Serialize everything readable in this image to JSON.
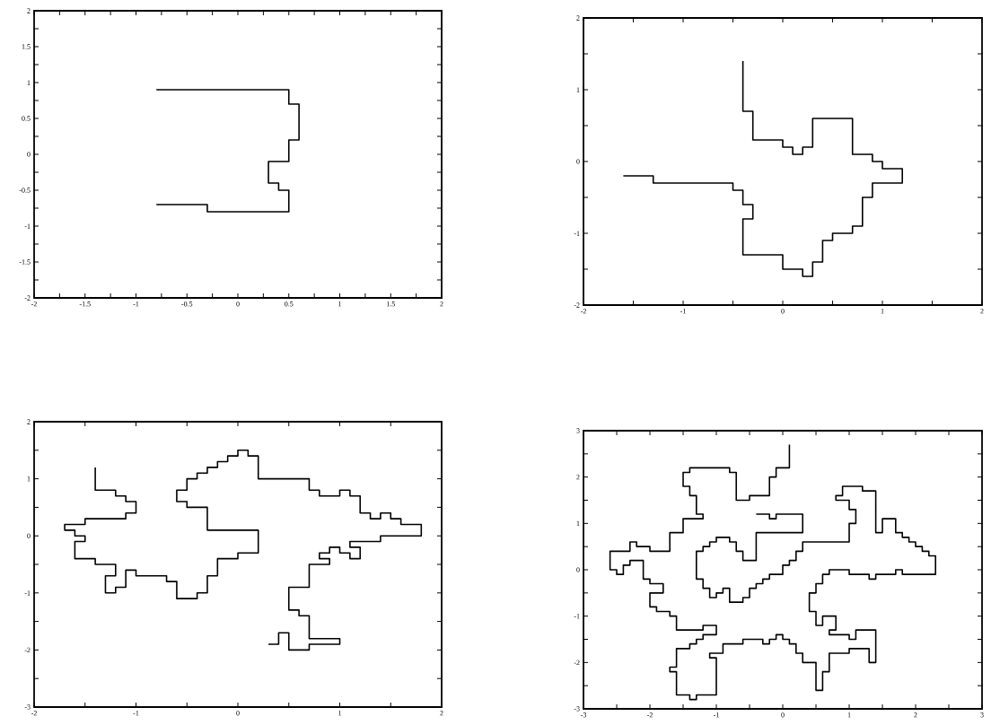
{
  "chart_data": [
    {
      "type": "line",
      "xlim": [
        -2,
        2
      ],
      "ylim": [
        -2,
        2
      ],
      "xticks": [
        -2,
        {
          "value": -1.75,
          "label": null
        },
        -1.5,
        {
          "value": -1.25,
          "label": null
        },
        -1,
        {
          "value": -0.75,
          "label": null
        },
        -0.5,
        {
          "value": -0.25,
          "label": null
        },
        0,
        {
          "value": 0.25,
          "label": null
        },
        0.5,
        {
          "value": 0.75,
          "label": null
        },
        1,
        {
          "value": 1.25,
          "label": null
        },
        1.5,
        {
          "value": 1.75,
          "label": null
        },
        2
      ],
      "yticks": [
        -2,
        {
          "value": -1.75,
          "label": null
        },
        -1.5,
        {
          "value": -1.25,
          "label": null
        },
        -1,
        {
          "value": -0.75,
          "label": null
        },
        -0.5,
        {
          "value": -0.25,
          "label": null
        },
        0,
        {
          "value": 0.25,
          "label": null
        },
        0.5,
        {
          "value": 0.75,
          "label": null
        },
        1,
        {
          "value": 1.25,
          "label": null
        },
        1.5,
        {
          "value": 1.75,
          "label": null
        },
        2
      ],
      "series": [
        {
          "color": "#000000",
          "x": [
            -0.8,
            0.5,
            0.5,
            0.6,
            0.6,
            0.5,
            0.5,
            0.3,
            0.3,
            0.4,
            0.4,
            0.5,
            0.5,
            -0.3,
            -0.3,
            -0.8
          ],
          "values": [
            0.9,
            0.9,
            0.7,
            0.7,
            0.2,
            0.2,
            -0.1,
            -0.1,
            -0.4,
            -0.4,
            -0.5,
            -0.5,
            -0.8,
            -0.8,
            -0.7,
            -0.7
          ]
        }
      ]
    },
    {
      "type": "line",
      "xlim": [
        -2,
        2
      ],
      "ylim": [
        -2,
        2
      ],
      "xticks": [
        -2,
        {
          "value": -1.5,
          "label": null
        },
        -1,
        {
          "value": -0.5,
          "label": null
        },
        0,
        {
          "value": 0.5,
          "label": null
        },
        1,
        {
          "value": 1.5,
          "label": null
        },
        2
      ],
      "yticks": [
        -2,
        {
          "value": -1.5,
          "label": null
        },
        -1,
        {
          "value": -0.5,
          "label": null
        },
        0,
        {
          "value": 0.5,
          "label": null
        },
        1,
        {
          "value": 1.5,
          "label": null
        },
        2
      ],
      "series": [
        {
          "color": "#000000",
          "x": [
            -0.4,
            -0.4,
            -0.3,
            -0.3,
            0,
            0,
            0.1,
            0.1,
            0.2,
            0.2,
            0.3,
            0.3,
            0.7,
            0.7,
            0.9,
            0.9,
            1.0,
            1.0,
            1.2,
            1.2,
            0.9,
            0.9,
            0.8,
            0.8,
            0.7,
            0.7,
            0.5,
            0.5,
            0.4,
            0.4,
            0.3,
            0.3,
            0.2,
            0.2,
            0,
            0,
            -0.4,
            -0.4,
            -0.3,
            -0.3,
            -0.4,
            -0.4,
            -0.5,
            -0.5,
            -1.3,
            -1.3,
            -1.6
          ],
          "values": [
            1.4,
            0.7,
            0.7,
            0.3,
            0.3,
            0.2,
            0.2,
            0.1,
            0.1,
            0.2,
            0.2,
            0.6,
            0.6,
            0.1,
            0.1,
            0,
            0,
            -0.1,
            -0.1,
            -0.3,
            -0.3,
            -0.5,
            -0.5,
            -0.9,
            -0.9,
            -1.0,
            -1.0,
            -1.1,
            -1.1,
            -1.4,
            -1.4,
            -1.6,
            -1.6,
            -1.5,
            -1.5,
            -1.3,
            -1.3,
            -0.8,
            -0.8,
            -0.6,
            -0.6,
            -0.4,
            -0.4,
            -0.3,
            -0.3,
            -0.2,
            -0.2
          ]
        }
      ]
    },
    {
      "type": "line",
      "xlim": [
        -2,
        2
      ],
      "ylim": [
        -3,
        2
      ],
      "xticks": [
        -2,
        {
          "value": -1.5,
          "label": null
        },
        -1,
        {
          "value": -0.5,
          "label": null
        },
        0,
        {
          "value": 0.5,
          "label": null
        },
        1,
        {
          "value": 1.5,
          "label": null
        },
        2
      ],
      "yticks": [
        -3,
        {
          "value": -2.5,
          "label": null
        },
        -2,
        {
          "value": -1.5,
          "label": null
        },
        -1,
        {
          "value": -0.5,
          "label": null
        },
        0,
        {
          "value": 0.5,
          "label": null
        },
        1,
        {
          "value": 1.5,
          "label": null
        },
        2
      ],
      "series": [
        {
          "color": "#000000",
          "x": [
            -1.4,
            -1.4,
            -1.2,
            -1.2,
            -1.1,
            -1.1,
            -1.0,
            -1.0,
            -1.1,
            -1.1,
            -1.5,
            -1.5,
            -1.7,
            -1.7,
            -1.6,
            -1.6,
            -1.5,
            -1.5,
            -1.6,
            -1.6,
            -1.4,
            -1.4,
            -1.2,
            -1.2,
            -1.3,
            -1.3,
            -1.2,
            -1.2,
            -1.1,
            -1.1,
            -1.0,
            -1.0,
            -0.7,
            -0.7,
            -0.6,
            -0.6,
            -0.4,
            -0.4,
            -0.3,
            -0.3,
            -0.2,
            -0.2,
            0,
            0,
            0.2,
            0.2,
            -0.3,
            -0.3,
            -0.5,
            -0.5,
            -0.6,
            -0.6,
            -0.5,
            -0.5,
            -0.4,
            -0.4,
            -0.3,
            -0.3,
            -0.2,
            -0.2,
            -0.1,
            -0.1,
            0,
            0,
            0.1,
            0.1,
            0.2,
            0.2,
            0.7,
            0.7,
            0.8,
            0.8,
            1.0,
            1.0,
            1.1,
            1.1,
            1.2,
            1.2,
            1.3,
            1.3,
            1.4,
            1.4,
            1.5,
            1.5,
            1.6,
            1.6,
            1.8,
            1.8,
            1.4,
            1.4,
            1.1,
            1.1,
            1.2,
            1.2,
            1.1,
            1.1,
            1.0,
            1.0,
            0.9,
            0.9,
            0.8,
            0.8,
            0.9,
            0.9,
            0.7,
            0.7,
            0.5,
            0.5,
            0.6,
            0.6,
            0.7,
            0.7,
            1.0,
            1.0,
            0.7,
            0.7,
            0.5,
            0.5,
            0.4,
            0.4,
            0.3
          ],
          "values": [
            1.2,
            0.8,
            0.8,
            0.7,
            0.7,
            0.6,
            0.6,
            0.4,
            0.4,
            0.3,
            0.3,
            0.2,
            0.2,
            0.1,
            0.1,
            0,
            0,
            -0.1,
            -0.1,
            -0.4,
            -0.4,
            -0.5,
            -0.5,
            -0.7,
            -0.7,
            -1.0,
            -1.0,
            -0.9,
            -0.9,
            -0.6,
            -0.6,
            -0.7,
            -0.7,
            -0.8,
            -0.8,
            -1.1,
            -1.1,
            -1.0,
            -1.0,
            -0.7,
            -0.7,
            -0.4,
            -0.4,
            -0.3,
            -0.3,
            0.1,
            0.1,
            0.5,
            0.5,
            0.6,
            0.6,
            0.8,
            0.8,
            1.0,
            1.0,
            1.1,
            1.1,
            1.2,
            1.2,
            1.3,
            1.3,
            1.4,
            1.4,
            1.5,
            1.5,
            1.4,
            1.4,
            1.0,
            1.0,
            0.8,
            0.8,
            0.7,
            0.7,
            0.8,
            0.8,
            0.7,
            0.7,
            0.4,
            0.4,
            0.3,
            0.3,
            0.4,
            0.4,
            0.3,
            0.3,
            0.2,
            0.2,
            0,
            0,
            -0.1,
            -0.1,
            -0.2,
            -0.2,
            -0.4,
            -0.4,
            -0.3,
            -0.3,
            -0.2,
            -0.2,
            -0.3,
            -0.3,
            -0.4,
            -0.4,
            -0.5,
            -0.5,
            -0.9,
            -0.9,
            -1.3,
            -1.3,
            -1.4,
            -1.4,
            -1.8,
            -1.8,
            -1.9,
            -1.9,
            -2.0,
            -2.0,
            -1.7,
            -1.7,
            -1.9,
            -1.9
          ]
        }
      ]
    },
    {
      "type": "line",
      "xlim": [
        -3,
        3
      ],
      "ylim": [
        -3,
        3
      ],
      "xticks": [
        -3,
        {
          "value": -2.5,
          "label": null
        },
        -2,
        {
          "value": -1.5,
          "label": null
        },
        -1,
        {
          "value": -0.5,
          "label": null
        },
        0,
        {
          "value": 0.5,
          "label": null
        },
        1,
        {
          "value": 1.5,
          "label": null
        },
        2,
        {
          "value": 2.5,
          "label": null
        },
        3
      ],
      "yticks": [
        -3,
        {
          "value": -2.5,
          "label": null
        },
        -2,
        {
          "value": -1.5,
          "label": null
        },
        -1,
        {
          "value": -0.5,
          "label": null
        },
        0,
        {
          "value": 0.5,
          "label": null
        },
        1,
        {
          "value": 1.5,
          "label": null
        },
        2,
        {
          "value": 2.5,
          "label": null
        },
        3
      ],
      "series": [
        {
          "color": "#000000",
          "x": [
            0.1,
            0.1,
            -0.1,
            -0.1,
            -0.2,
            -0.2,
            -0.5,
            -0.5,
            -0.7,
            -0.7,
            -0.8,
            -0.8,
            -1.4,
            -1.4,
            -1.5,
            -1.5,
            -1.4,
            -1.4,
            -1.3,
            -1.3,
            -1.2,
            -1.2,
            -1.5,
            -1.5,
            -1.7,
            -1.7,
            -2.0,
            -2.0,
            -2.2,
            -2.2,
            -2.3,
            -2.3,
            -2.6,
            -2.6,
            -2.5,
            -2.5,
            -2.4,
            -2.4,
            -2.3,
            -2.3,
            -2.1,
            -2.1,
            -2.0,
            -2.0,
            -1.8,
            -1.8,
            -2.0,
            -2.0,
            -1.9,
            -1.9,
            -1.7,
            -1.7,
            -1.6,
            -1.6,
            -1.2,
            -1.2,
            -1.0,
            -1.0,
            -1.2,
            -1.2,
            -1.3,
            -1.3,
            -1.4,
            -1.4,
            -1.6,
            -1.6,
            -1.7,
            -1.7,
            -1.6,
            -1.6,
            -1.4,
            -1.4,
            -1.3,
            -1.3,
            -1.0,
            -1.0,
            -1.1,
            -1.1,
            -0.9,
            -0.9,
            -0.6,
            -0.6,
            -0.3,
            -0.3,
            -0.2,
            -0.2,
            -0.1,
            -0.1,
            0,
            0,
            0.1,
            0.1,
            0.2,
            0.2,
            0.3,
            0.3,
            0.5,
            0.5,
            0.6,
            0.6,
            0.7,
            0.7,
            1.0,
            1.0,
            1.3,
            1.3,
            1.4,
            1.4,
            1.1,
            1.1,
            1.0,
            1.0,
            0.7,
            0.7,
            0.8,
            0.8,
            0.6,
            0.6,
            0.5,
            0.5,
            0.4,
            0.4,
            0.5,
            0.5,
            0.6,
            0.6,
            0.7,
            0.7,
            1.0,
            1.0,
            1.3,
            1.3,
            1.4,
            1.4,
            1.7,
            1.7,
            1.8,
            1.8,
            2.3,
            2.3,
            2.2,
            2.2,
            2.1,
            2.1,
            2.0,
            2.0,
            1.9,
            1.9,
            1.8,
            1.8,
            1.7,
            1.7,
            1.5,
            1.5,
            1.4,
            1.4,
            1.2,
            1.2,
            0.9,
            0.9,
            0.8,
            0.8,
            1.0,
            1.0,
            1.1,
            1.1,
            1.0,
            1.0,
            0.3,
            0.3,
            0.2,
            0.2,
            0.1,
            0.1,
            0,
            0,
            -0.2,
            -0.2,
            -0.3,
            -0.3,
            -0.4,
            -0.4,
            -0.5,
            -0.5,
            -0.6,
            -0.6,
            -0.8,
            -0.8,
            -0.9,
            -0.9,
            -1.0,
            -1.0,
            -1.1,
            -1.1,
            -1.2,
            -1.2,
            -1.3,
            -1.3,
            -1.2,
            -1.2,
            -1.1,
            -1.1,
            -1.0,
            -1.0,
            -0.8,
            -0.8,
            -0.7,
            -0.7,
            -0.6,
            -0.6,
            -0.4,
            -0.4,
            0.3,
            0.3,
            -0.1,
            -0.1,
            -0.2,
            -0.2,
            -0.4
          ],
          "values": [
            2.7,
            2.2,
            2.2,
            2.0,
            2.0,
            1.6,
            1.6,
            1.5,
            1.5,
            2.1,
            2.1,
            2.2,
            2.2,
            2.1,
            2.1,
            1.8,
            1.8,
            1.6,
            1.6,
            1.2,
            1.2,
            1.1,
            1.1,
            0.8,
            0.8,
            0.4,
            0.4,
            0.5,
            0.5,
            0.6,
            0.6,
            0.4,
            0.4,
            0,
            0,
            -0.1,
            -0.1,
            0.1,
            0.1,
            0.2,
            0.2,
            -0.2,
            -0.2,
            -0.3,
            -0.3,
            -0.5,
            -0.5,
            -0.8,
            -0.8,
            -0.9,
            -0.9,
            -1.0,
            -1.0,
            -1.3,
            -1.3,
            -1.2,
            -1.2,
            -1.4,
            -1.4,
            -1.5,
            -1.5,
            -1.6,
            -1.6,
            -1.7,
            -1.7,
            -2.1,
            -2.1,
            -2.2,
            -2.2,
            -2.7,
            -2.7,
            -2.8,
            -2.8,
            -2.7,
            -2.7,
            -1.9,
            -1.9,
            -1.8,
            -1.8,
            -1.6,
            -1.6,
            -1.5,
            -1.5,
            -1.6,
            -1.6,
            -1.5,
            -1.5,
            -1.4,
            -1.4,
            -1.5,
            -1.5,
            -1.6,
            -1.6,
            -1.8,
            -1.8,
            -2.0,
            -2.0,
            -2.6,
            -2.6,
            -2.2,
            -2.2,
            -1.8,
            -1.8,
            -1.7,
            -1.7,
            -2.0,
            -2.0,
            -1.3,
            -1.3,
            -1.5,
            -1.5,
            -1.4,
            -1.4,
            -1.3,
            -1.3,
            -1.0,
            -1.0,
            -1.2,
            -1.2,
            -0.9,
            -0.9,
            -0.5,
            -0.5,
            -0.3,
            -0.3,
            -0.1,
            -0.1,
            0,
            0,
            -0.1,
            -0.1,
            -0.2,
            -0.2,
            -0.1,
            -0.1,
            0,
            0,
            -0.1,
            -0.1,
            0.3,
            0.3,
            0.4,
            0.4,
            0.5,
            0.5,
            0.6,
            0.6,
            0.7,
            0.7,
            0.8,
            0.8,
            1.1,
            1.1,
            0.8,
            0.8,
            1.7,
            1.7,
            1.8,
            1.8,
            1.6,
            1.6,
            1.5,
            1.5,
            1.3,
            1.3,
            1.0,
            1.0,
            0.6,
            0.6,
            0.4,
            0.4,
            0.2,
            0.2,
            0.1,
            0.1,
            -0.1,
            -0.1,
            -0.2,
            -0.2,
            -0.3,
            -0.3,
            -0.4,
            -0.4,
            -0.6,
            -0.6,
            -0.7,
            -0.7,
            -0.4,
            -0.4,
            -0.5,
            -0.5,
            -0.6,
            -0.6,
            -0.4,
            -0.4,
            -0.2,
            -0.2,
            0.4,
            0.4,
            0.5,
            0.5,
            0.6,
            0.6,
            0.7,
            0.7,
            0.6,
            0.6,
            0.4,
            0.4,
            0.2,
            0.2,
            0.8,
            0.8,
            1.2,
            1.2,
            1.1,
            1.1,
            1.2,
            1.2
          ]
        }
      ]
    }
  ]
}
